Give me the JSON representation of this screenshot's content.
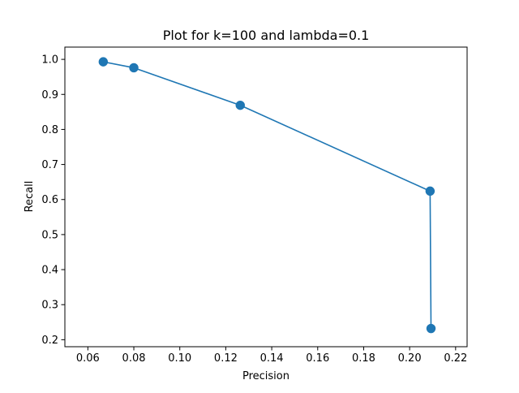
{
  "chart_data": {
    "type": "line",
    "title": "Plot for k=100 and lambda=0.1",
    "xlabel": "Precision",
    "ylabel": "Recall",
    "xlim": [
      0.05,
      0.225
    ],
    "ylim": [
      0.18,
      1.035
    ],
    "x_ticks": [
      "0.06",
      "0.08",
      "0.10",
      "0.12",
      "0.14",
      "0.16",
      "0.18",
      "0.20",
      "0.22"
    ],
    "y_ticks": [
      "0.2",
      "0.3",
      "0.4",
      "0.5",
      "0.6",
      "0.7",
      "0.8",
      "0.9",
      "1.0"
    ],
    "grid": false,
    "series": [
      {
        "color": "#1f77b4",
        "marker": "circle",
        "points": [
          {
            "x": 0.0667,
            "y": 0.993
          },
          {
            "x": 0.08,
            "y": 0.976
          },
          {
            "x": 0.1263,
            "y": 0.869
          },
          {
            "x": 0.2089,
            "y": 0.624
          },
          {
            "x": 0.2093,
            "y": 0.232
          }
        ]
      }
    ]
  }
}
